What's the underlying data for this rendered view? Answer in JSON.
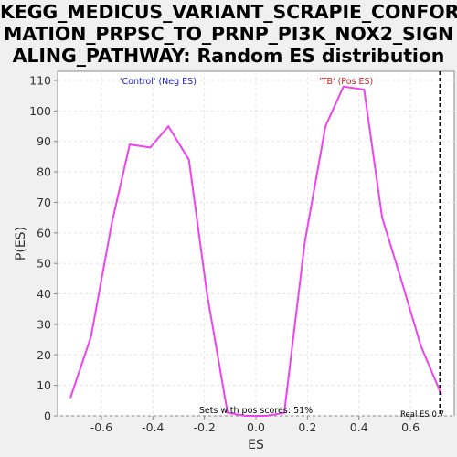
{
  "chart_data": {
    "type": "line",
    "title_lines": [
      "KEGG_MEDICUS_VARIANT_SCRAPIE_CONFOR",
      "MATION_PRPSC_TO_PRNP_PI3K_NOX2_SIGN",
      "ALING_PATHWAY: Random ES distribution"
    ],
    "xlabel": "ES",
    "ylabel": "P(ES)",
    "xlim": [
      -0.77,
      0.77
    ],
    "ylim": [
      0,
      113
    ],
    "x_ticks": [
      -0.6,
      -0.4,
      -0.2,
      0.0,
      0.2,
      0.4,
      0.6
    ],
    "x_tick_labels": [
      "-0.6",
      "-0.4",
      "-0.2",
      "0.0",
      "0.2",
      "0.4",
      "0.6"
    ],
    "y_ticks": [
      0,
      10,
      20,
      30,
      40,
      50,
      60,
      70,
      80,
      90,
      100,
      110
    ],
    "y_tick_labels": [
      "0",
      "10",
      "20",
      "30",
      "40",
      "50",
      "60",
      "70",
      "80",
      "90",
      "100",
      "110"
    ],
    "grid": true,
    "series": [
      {
        "color": "#ee44ee",
        "x": [
          -0.72,
          -0.64,
          -0.56,
          -0.49,
          -0.41,
          -0.34,
          -0.26,
          -0.19,
          -0.11,
          -0.04,
          0.04,
          0.11,
          0.19,
          0.27,
          0.34,
          0.42,
          0.49,
          0.57,
          0.64,
          0.72
        ],
        "y": [
          6,
          26,
          63,
          89,
          88,
          95,
          84,
          40,
          1,
          0,
          0,
          1,
          57,
          95,
          108,
          107,
          65,
          43,
          23,
          7
        ]
      }
    ],
    "annotations": {
      "neg_label": "'Control' (Neg ES)",
      "pos_label": "'TB' (Pos ES)",
      "neg_color": "#2222cc",
      "pos_color": "#cc2222",
      "pos_scores_text": "Sets with pos scores: 51%",
      "real_es_text": "Real ES 0.7",
      "real_es_value": 0.715
    }
  }
}
